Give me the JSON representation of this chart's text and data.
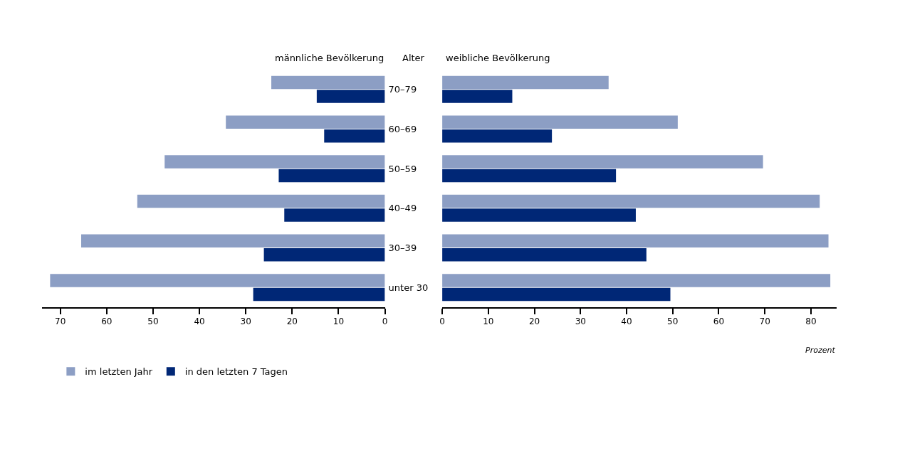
{
  "chart_data": [
    {
      "type": "bar",
      "orientation": "horizontal",
      "title": "männliche Bevölkerung",
      "ylabel": "Alter",
      "categories": [
        "70–79",
        "60–69",
        "50–59",
        "40–49",
        "30–39",
        "unter 30"
      ],
      "series": [
        {
          "name": "im letzten Jahr",
          "color": "#8c9ec4",
          "values": [
            24.5,
            34.3,
            47.5,
            53.4,
            65.5,
            72.2
          ]
        },
        {
          "name": "in den letzten 7 Tagen",
          "color": "#002776",
          "values": [
            14.7,
            13.1,
            22.9,
            21.7,
            26.1,
            28.4
          ]
        }
      ],
      "xlim": [
        74,
        0
      ],
      "xticks": [
        70,
        60,
        50,
        40,
        30,
        20,
        10,
        0
      ],
      "legend": "bottom left"
    },
    {
      "type": "bar",
      "orientation": "horizontal",
      "title": "weibliche Bevölkerung",
      "xlabel": "Prozent",
      "categories": [
        "70–79",
        "60–69",
        "50–59",
        "40–49",
        "30–39",
        "unter 30"
      ],
      "series": [
        {
          "color": "#8c9ec4",
          "values": [
            36.1,
            51.1,
            69.6,
            81.9,
            83.8,
            84.2
          ]
        },
        {
          "color": "#002776",
          "values": [
            15.2,
            23.8,
            37.7,
            42.0,
            44.3,
            49.5
          ]
        }
      ],
      "xlim": [
        0,
        85.5
      ],
      "xticks": [
        0,
        10,
        20,
        30,
        40,
        50,
        60,
        70,
        80
      ],
      "tick_labels": "x"
    }
  ]
}
